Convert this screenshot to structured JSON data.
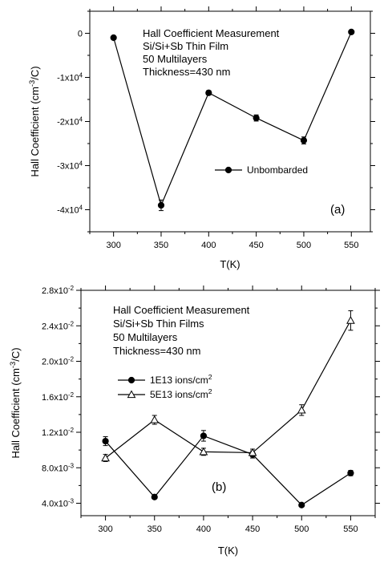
{
  "chart_data": [
    {
      "type": "line",
      "panel_label": "(a)",
      "annotation": [
        "Hall Coefficient Measurement",
        "Si/Si+Sb Thin Film",
        "50 Multilayers",
        "Thickness=430 nm"
      ],
      "xlabel": "T(K)",
      "ylabel": {
        "base": "Hall Coefficient (cm",
        "sup": "-3",
        "end": "/C)"
      },
      "xlim": [
        275,
        570
      ],
      "ylim": [
        -45000,
        5000
      ],
      "x_ticks": [
        {
          "value": 300,
          "text": "300"
        },
        {
          "value": 350,
          "text": "350"
        },
        {
          "value": 400,
          "text": "400"
        },
        {
          "value": 450,
          "text": "450"
        },
        {
          "value": 500,
          "text": "500"
        },
        {
          "value": 550,
          "text": "550"
        }
      ],
      "y_ticks": [
        {
          "value": 0,
          "mant": "0",
          "exp": ""
        },
        {
          "value": -10000,
          "mant": "-1x10",
          "exp": "4"
        },
        {
          "value": -20000,
          "mant": "-2x10",
          "exp": "4"
        },
        {
          "value": -30000,
          "mant": "-3x10",
          "exp": "4"
        },
        {
          "value": -40000,
          "mant": "-4x10",
          "exp": "4"
        }
      ],
      "legend_position": "center-right",
      "series": [
        {
          "name": "Unbombarded",
          "marker": "filled-circle",
          "x": [
            300,
            350,
            400,
            450,
            500,
            550
          ],
          "y": [
            -1000,
            -39000,
            -13500,
            -19200,
            -24300,
            300
          ],
          "error": [
            0,
            1200,
            500,
            700,
            800,
            0
          ]
        }
      ]
    },
    {
      "type": "line",
      "panel_label": "(b)",
      "annotation": [
        "Hall Coefficient Measurement",
        "Si/Si+Sb Thin Films",
        "50 Multilayers",
        "Thickness=430 nm"
      ],
      "xlabel": "T(K)",
      "ylabel": {
        "base": "Hall Coefficient (cm",
        "sup": "-3",
        "end": "/C)"
      },
      "xlim": [
        275,
        575
      ],
      "ylim": [
        0.0026,
        0.028
      ],
      "x_ticks": [
        {
          "value": 300,
          "text": "300"
        },
        {
          "value": 350,
          "text": "350"
        },
        {
          "value": 400,
          "text": "400"
        },
        {
          "value": 450,
          "text": "450"
        },
        {
          "value": 500,
          "text": "500"
        },
        {
          "value": 550,
          "text": "550"
        }
      ],
      "y_ticks": [
        {
          "value": 0.004,
          "mant": "4.0x10",
          "exp": "-3"
        },
        {
          "value": 0.008,
          "mant": "8.0x10",
          "exp": "-3"
        },
        {
          "value": 0.012,
          "mant": "1.2x10",
          "exp": "-2"
        },
        {
          "value": 0.016,
          "mant": "1.6x10",
          "exp": "-2"
        },
        {
          "value": 0.02,
          "mant": "2.0x10",
          "exp": "-2"
        },
        {
          "value": 0.024,
          "mant": "2.4x10",
          "exp": "-2"
        },
        {
          "value": 0.028,
          "mant": "2.8x10",
          "exp": "-2"
        }
      ],
      "legend_position": "center-left",
      "series": [
        {
          "name": {
            "base": "1E13 ions/cm",
            "sup": "2"
          },
          "marker": "filled-circle",
          "x": [
            300,
            350,
            400,
            450,
            500,
            550
          ],
          "y": [
            0.011,
            0.0047,
            0.0116,
            0.0095,
            0.0038,
            0.0074
          ],
          "error": [
            0.0005,
            0.0001,
            0.0006,
            0.0004,
            0.0001,
            0.0003
          ]
        },
        {
          "name": {
            "base": "5E13 ions/cm",
            "sup": "2"
          },
          "marker": "open-triangle",
          "x": [
            300,
            350,
            400,
            450,
            500,
            550
          ],
          "y": [
            0.0091,
            0.0134,
            0.0098,
            0.0097,
            0.0145,
            0.0246
          ],
          "error": [
            0.0004,
            0.0005,
            0.0004,
            0.0004,
            0.0006,
            0.0011
          ]
        }
      ]
    }
  ]
}
